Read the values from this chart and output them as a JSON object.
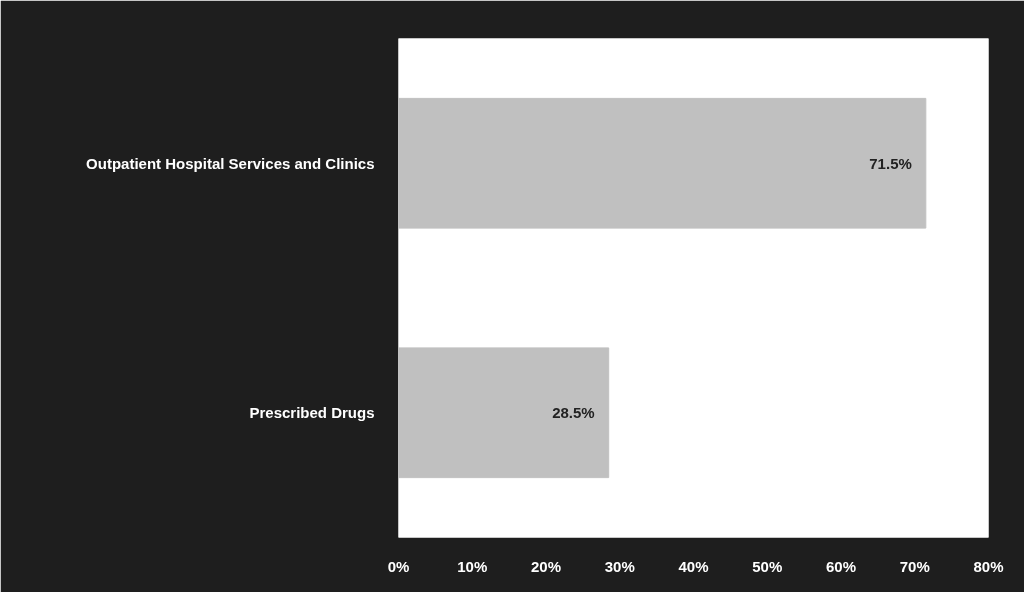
{
  "chart_data": {
    "type": "bar",
    "orientation": "horizontal",
    "categories": [
      "Outpatient Hospital Services and Clinics",
      "Prescribed Drugs"
    ],
    "values": [
      71.5,
      28.5
    ],
    "value_labels": [
      "71.5%",
      "28.5%"
    ],
    "color": "#c0c0c0",
    "xlim": [
      0,
      80
    ],
    "xticks": [
      {
        "value": 0,
        "label": "0%"
      },
      {
        "value": 10,
        "label": "10%"
      },
      {
        "value": 20,
        "label": "20%"
      },
      {
        "value": 30,
        "label": "30%"
      },
      {
        "value": 40,
        "label": "40%"
      },
      {
        "value": 50,
        "label": "50%"
      },
      {
        "value": 60,
        "label": "60%"
      },
      {
        "value": 70,
        "label": "70%"
      },
      {
        "value": 80,
        "label": "80%"
      }
    ],
    "grid": false
  }
}
